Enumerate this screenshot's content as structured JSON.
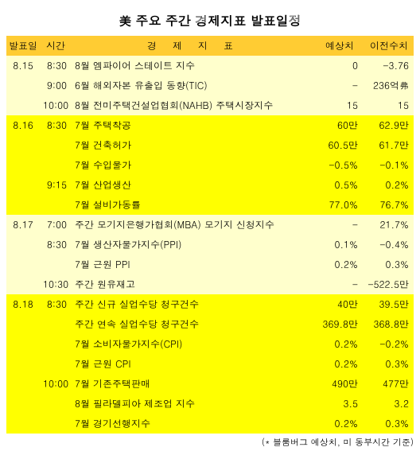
{
  "title": "美 주요 주간 경제지표 발표일정",
  "columns": {
    "date": "발표일",
    "time": "시간",
    "indicator": "경 제 지 표",
    "expected": "예상치",
    "previous": "이전수치"
  },
  "colors": {
    "header_bg": "#ffcc33",
    "group_a_bg": "#ffffcc",
    "group_b_bg": "#ffff00",
    "text": "#000000",
    "page_bg": "#ffffff"
  },
  "rows": [
    {
      "group": "a",
      "date": "8.15",
      "time": "8:30",
      "indicator": "8월 엠파이어 스테이트 지수",
      "expected": "0",
      "previous": "-3.76"
    },
    {
      "group": "a",
      "date": "",
      "time": "9:00",
      "indicator": "6월 해외자본 유출입 동향(TIC)",
      "expected": "-",
      "previous": "236억弗"
    },
    {
      "group": "a",
      "date": "",
      "time": "10:00",
      "indicator": "8월 전미주택건설업협회(NAHB) 주택시장지수",
      "expected": "15",
      "previous": "15"
    },
    {
      "group": "b",
      "date": "8.16",
      "time": "8:30",
      "indicator": "7월 주택착공",
      "expected": "60만",
      "previous": "62.9만"
    },
    {
      "group": "b",
      "date": "",
      "time": "",
      "indicator": "7월 건축허가",
      "expected": "60.5만",
      "previous": "61.7만"
    },
    {
      "group": "b",
      "date": "",
      "time": "",
      "indicator": "7월 수입물가",
      "expected": "-0.5%",
      "previous": "-0.1%"
    },
    {
      "group": "b",
      "date": "",
      "time": "9:15",
      "indicator": "7월 산업생산",
      "expected": "0.5%",
      "previous": "0.2%"
    },
    {
      "group": "b",
      "date": "",
      "time": "",
      "indicator": "7월 설비가동률",
      "expected": "77.0%",
      "previous": "76.7%"
    },
    {
      "group": "a",
      "date": "8.17",
      "time": "7:00",
      "indicator": "주간 모기지은행가협회(MBA) 모기지 신청지수",
      "expected": "-",
      "previous": "21.7%"
    },
    {
      "group": "a",
      "date": "",
      "time": "8:30",
      "indicator": "7월 생산자물가지수(PPI)",
      "expected": "0.1%",
      "previous": "-0.4%"
    },
    {
      "group": "a",
      "date": "",
      "time": "",
      "indicator": "7월 근원 PPI",
      "expected": "0.2%",
      "previous": "0.3%"
    },
    {
      "group": "a",
      "date": "",
      "time": "10:30",
      "indicator": "주간 원유재고",
      "expected": "-",
      "previous": "-522.5만"
    },
    {
      "group": "b",
      "date": "8.18",
      "time": "8:30",
      "indicator": "주간 신규 실업수당 청구건수",
      "expected": "40만",
      "previous": "39.5만"
    },
    {
      "group": "b",
      "date": "",
      "time": "",
      "indicator": "주간 연속 실업수당 청구건수",
      "expected": "369.8만",
      "previous": "368.8만"
    },
    {
      "group": "b",
      "date": "",
      "time": "",
      "indicator": "7월 소비자물가지수(CPI)",
      "expected": "0.2%",
      "previous": "-0.2%"
    },
    {
      "group": "b",
      "date": "",
      "time": "",
      "indicator": "7월 근원 CPI",
      "expected": "0.2%",
      "previous": "0.3%"
    },
    {
      "group": "b",
      "date": "",
      "time": "10:00",
      "indicator": "7월 기존주택판매",
      "expected": "490만",
      "previous": "477만"
    },
    {
      "group": "b",
      "date": "",
      "time": "",
      "indicator": "8월 필라델피아 제조업 지수",
      "expected": "3.5",
      "previous": "3.2"
    },
    {
      "group": "b",
      "date": "",
      "time": "",
      "indicator": "7월 경기선행지수",
      "expected": "0.2%",
      "previous": "0.3%"
    }
  ],
  "footnote": "(* 블룸버그 예상치, 미 동부시간 기준)"
}
